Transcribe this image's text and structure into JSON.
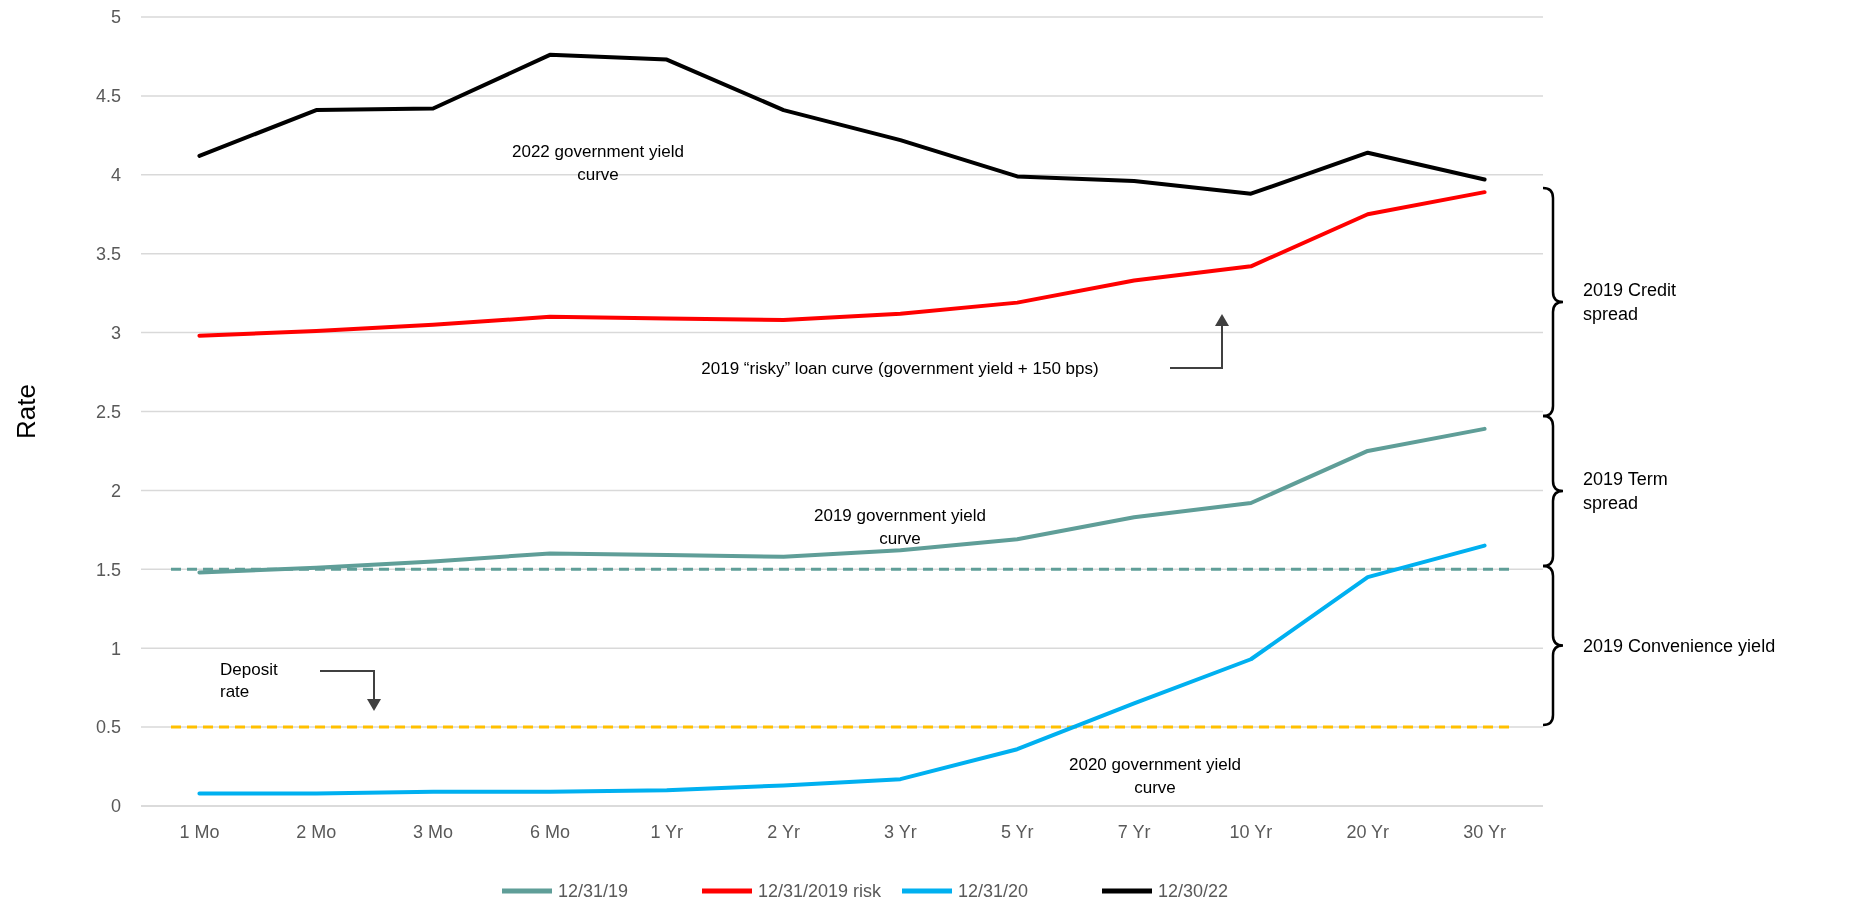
{
  "chart_data": {
    "type": "line",
    "ylabel": "Rate",
    "categories": [
      "1 Mo",
      "2 Mo",
      "3 Mo",
      "6 Mo",
      "1 Yr",
      "2 Yr",
      "3 Yr",
      "5 Yr",
      "7 Yr",
      "10 Yr",
      "20 Yr",
      "30 Yr"
    ],
    "series": [
      {
        "name": "12/31/19",
        "color": "#5f9e98",
        "values": [
          1.48,
          1.51,
          1.55,
          1.6,
          1.59,
          1.58,
          1.62,
          1.69,
          1.83,
          1.92,
          2.25,
          2.39
        ]
      },
      {
        "name": "12/31/2019 risk",
        "color": "#ff0000",
        "values": [
          2.98,
          3.01,
          3.05,
          3.1,
          3.09,
          3.08,
          3.12,
          3.19,
          3.33,
          3.42,
          3.75,
          3.89
        ]
      },
      {
        "name": "12/31/20",
        "color": "#00b0f0",
        "values": [
          0.08,
          0.08,
          0.09,
          0.09,
          0.1,
          0.13,
          0.17,
          0.36,
          0.65,
          0.93,
          1.45,
          1.65
        ]
      },
      {
        "name": "12/30/22",
        "color": "#000000",
        "values": [
          4.12,
          4.41,
          4.42,
          4.76,
          4.73,
          4.41,
          4.22,
          3.99,
          3.96,
          3.88,
          4.14,
          3.97
        ]
      }
    ],
    "ylim": [
      0,
      5
    ],
    "yticks": [
      0,
      0.5,
      1,
      1.5,
      2,
      2.5,
      3,
      3.5,
      4,
      4.5,
      5
    ],
    "grid": "y",
    "legend": "bottom",
    "marker": "none",
    "line_style": "solid",
    "ref_lines": [
      {
        "axis": "y",
        "value": 1.5,
        "color": "#5f9e98",
        "line_style": "dashed"
      },
      {
        "axis": "y",
        "value": 0.5,
        "label": "Deposit rate",
        "color": "#ffc000",
        "line_style": "dashed"
      }
    ],
    "annotations": [
      "2022 government yield curve",
      "2019 “risky” loan curve (government yield + 150 bps)",
      "2019 government yield curve",
      "2020 government yield curve",
      "2019 Credit spread",
      "2019 Term spread",
      "2019 Convenience yield"
    ]
  }
}
